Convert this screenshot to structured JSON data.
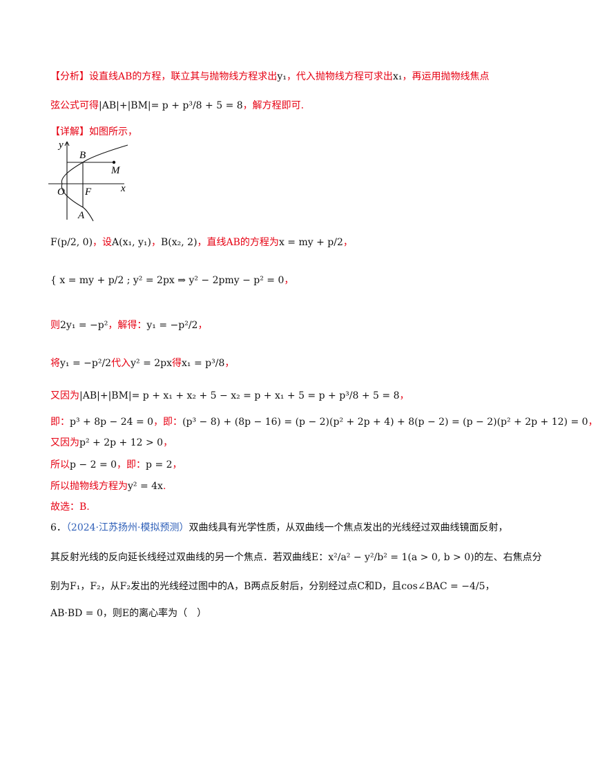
{
  "lines": [
    {
      "segments": [
        {
          "text": "【分析】设直线AB的方程，联立其与抛物线方程求出",
          "color": "#e60012"
        },
        {
          "text": "y₁"
        },
        {
          "text": "，代入抛物线方程可求出",
          "color": "#e60012"
        },
        {
          "text": "x₁"
        },
        {
          "text": "，再运用抛物线焦点",
          "color": "#e60012"
        }
      ]
    },
    {
      "segments": [
        {
          "text": "弦公式可得",
          "color": "#e60012"
        },
        {
          "text": "|AB|+|BM|= p + p³/8 + 5 = 8"
        },
        {
          "text": "，解方程即可.",
          "color": "#e60012"
        }
      ]
    },
    {
      "segments": [
        {
          "text": "【详解】如图所示，",
          "color": "#e60012"
        }
      ]
    },
    {
      "segments": [
        {
          "text": "F(p/2, 0)"
        },
        {
          "text": "，设",
          "color": "#e60012"
        },
        {
          "text": "A(x₁, y₁)"
        },
        {
          "text": "，",
          "color": "#e60012"
        },
        {
          "text": "B(x₂, 2)"
        },
        {
          "text": "，直线AB的方程为",
          "color": "#e60012"
        },
        {
          "text": "x = my + p/2"
        },
        {
          "text": "，",
          "color": "#e60012"
        }
      ]
    },
    {
      "segments": [
        {
          "text": "{ x = my + p/2 ; y² = 2px ⇒ y² − 2pmy − p² = 0"
        },
        {
          "text": "，",
          "color": "#e60012"
        }
      ]
    },
    {
      "segments": [
        {
          "text": "则",
          "color": "#e60012"
        },
        {
          "text": "2y₁ = −p²"
        },
        {
          "text": "，解得：",
          "color": "#e60012"
        },
        {
          "text": "y₁ = −p²/2"
        },
        {
          "text": "，",
          "color": "#e60012"
        }
      ]
    },
    {
      "segments": [
        {
          "text": "将",
          "color": "#e60012"
        },
        {
          "text": "y₁ = −p²/2"
        },
        {
          "text": "代入",
          "color": "#e60012"
        },
        {
          "text": "y² = 2px"
        },
        {
          "text": "得",
          "color": "#e60012"
        },
        {
          "text": "x₁ = p³/8"
        },
        {
          "text": "，",
          "color": "#e60012"
        }
      ]
    },
    {
      "segments": [
        {
          "text": "又因为",
          "color": "#e60012"
        },
        {
          "text": "|AB|+|BM|= p + x₁ + x₂ + 5 − x₂ = p + x₁ + 5 = p + p³/8 + 5 = 8"
        },
        {
          "text": "，",
          "color": "#e60012"
        }
      ]
    },
    {
      "segments": [
        {
          "text": "即：",
          "color": "#e60012"
        },
        {
          "text": "p³ + 8p − 24 = 0"
        },
        {
          "text": "，即：",
          "color": "#e60012"
        },
        {
          "text": "(p³ − 8) + (8p − 16) = (p − 2)(p² + 2p + 4) + 8(p − 2) = (p − 2)(p² + 2p + 12) = 0"
        },
        {
          "text": "，",
          "color": "#e60012"
        }
      ]
    },
    {
      "segments": [
        {
          "text": "又因为",
          "color": "#e60012"
        },
        {
          "text": "p² + 2p + 12 > 0"
        },
        {
          "text": "，",
          "color": "#e60012"
        }
      ]
    },
    {
      "segments": [
        {
          "text": "所以",
          "color": "#e60012"
        },
        {
          "text": "p − 2 = 0"
        },
        {
          "text": "，即：",
          "color": "#e60012"
        },
        {
          "text": "p = 2"
        },
        {
          "text": "，",
          "color": "#e60012"
        }
      ]
    },
    {
      "segments": [
        {
          "text": "所以抛物线方程为",
          "color": "#e60012"
        },
        {
          "text": "y² = 4x"
        },
        {
          "text": ".",
          "color": "#e60012"
        }
      ]
    },
    {
      "segments": [
        {
          "text": "故选：B.",
          "color": "#e60012"
        }
      ]
    },
    {
      "segments": [
        {
          "text": "6．"
        },
        {
          "text": "（2024·江苏扬州·模拟预测）",
          "color": "#2e5fb8"
        },
        {
          "text": "双曲线具有光学性质，从双曲线一个焦点发出的光线经过双曲线镜面反射，"
        }
      ]
    },
    {
      "segments": [
        {
          "text": "其反射光线的反向延长线经过双曲线的另一个焦点．若双曲线E：x²/a² − y²/b² = 1(a > 0, b > 0)的左、右焦点分"
        }
      ]
    },
    {
      "segments": [
        {
          "text": "别为F₁，F₂，从F₂发出的光线经过图中的A，B两点反射后，分别经过点C和D，且cos∠BAC = −4/5，"
        }
      ]
    },
    {
      "segments": [
        {
          "text": "AB·BD = 0，则E的离心率为（　）"
        }
      ]
    }
  ],
  "figure": {
    "labels": [
      "y",
      "B",
      "M",
      "O",
      "F",
      "x",
      "A"
    ]
  }
}
